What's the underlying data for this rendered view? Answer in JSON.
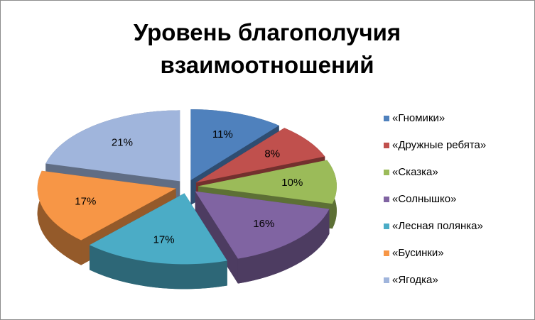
{
  "chart_data": {
    "type": "pie",
    "title": "Уровень благополучия взаимоотношений",
    "categories": [
      "«Гномики»",
      "«Дружные ребята»",
      "«Сказка»",
      "«Солнышко»",
      "«Лесная полянка»",
      "«Бусинки»",
      "«Ягодка»"
    ],
    "values": [
      11,
      8,
      10,
      16,
      17,
      17,
      21
    ],
    "value_labels": [
      "11%",
      "8%",
      "10%",
      "16%",
      "17%",
      "17%",
      "21%"
    ],
    "colors": [
      "#4f81bd",
      "#c0504d",
      "#9bbb59",
      "#8064a2",
      "#4bacc6",
      "#f79646",
      "#a0b5dc"
    ],
    "legend": "right"
  }
}
